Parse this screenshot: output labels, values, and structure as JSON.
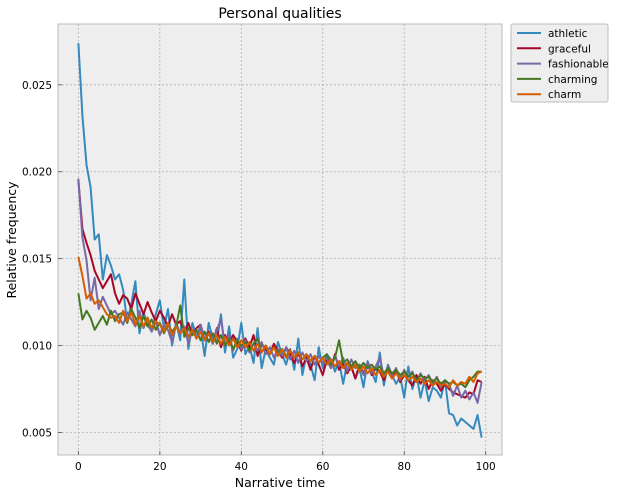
{
  "chart_data": {
    "type": "line",
    "title": "Personal qualities",
    "xlabel": "Narrative time",
    "ylabel": "Relative frequency",
    "xlim": [
      -5,
      104
    ],
    "ylim": [
      0.0037,
      0.0285
    ],
    "xticks": [
      0,
      20,
      40,
      60,
      80,
      100
    ],
    "xtick_labels": [
      "0",
      "20",
      "40",
      "60",
      "80",
      "100"
    ],
    "yticks": [
      0.005,
      0.01,
      0.015,
      0.02,
      0.025
    ],
    "ytick_labels": [
      "0.005",
      "0.010",
      "0.015",
      "0.020",
      "0.025"
    ],
    "grid": true,
    "legend_position": "outside-top-right",
    "x": [
      0,
      1,
      2,
      3,
      4,
      5,
      6,
      7,
      8,
      9,
      10,
      11,
      12,
      13,
      14,
      15,
      16,
      17,
      18,
      19,
      20,
      21,
      22,
      23,
      24,
      25,
      26,
      27,
      28,
      29,
      30,
      31,
      32,
      33,
      34,
      35,
      36,
      37,
      38,
      39,
      40,
      41,
      42,
      43,
      44,
      45,
      46,
      47,
      48,
      49,
      50,
      51,
      52,
      53,
      54,
      55,
      56,
      57,
      58,
      59,
      60,
      61,
      62,
      63,
      64,
      65,
      66,
      67,
      68,
      69,
      70,
      71,
      72,
      73,
      74,
      75,
      76,
      77,
      78,
      79,
      80,
      81,
      82,
      83,
      84,
      85,
      86,
      87,
      88,
      89,
      90,
      91,
      92,
      93,
      94,
      95,
      96,
      97,
      98,
      99
    ],
    "series": [
      {
        "name": "athletic",
        "color": "#348abd",
        "values": [
          0.0274,
          0.0232,
          0.0204,
          0.0191,
          0.0161,
          0.0164,
          0.0138,
          0.0152,
          0.0146,
          0.0138,
          0.0141,
          0.0132,
          0.0113,
          0.0124,
          0.0137,
          0.0107,
          0.0119,
          0.0112,
          0.0108,
          0.0118,
          0.0126,
          0.011,
          0.0121,
          0.01,
          0.0113,
          0.0103,
          0.0138,
          0.0098,
          0.0113,
          0.0105,
          0.011,
          0.0094,
          0.0113,
          0.0104,
          0.0102,
          0.0118,
          0.0096,
          0.0111,
          0.0093,
          0.0098,
          0.0113,
          0.0095,
          0.01,
          0.009,
          0.011,
          0.0087,
          0.0098,
          0.0093,
          0.0089,
          0.0102,
          0.0095,
          0.0089,
          0.0098,
          0.0086,
          0.0104,
          0.0083,
          0.0095,
          0.0089,
          0.008,
          0.0099,
          0.0087,
          0.0095,
          0.0092,
          0.0085,
          0.0091,
          0.0078,
          0.009,
          0.0088,
          0.0081,
          0.0087,
          0.0076,
          0.0091,
          0.0085,
          0.0079,
          0.0096,
          0.0077,
          0.0089,
          0.0083,
          0.0078,
          0.0082,
          0.007,
          0.0088,
          0.0075,
          0.0083,
          0.007,
          0.008,
          0.0068,
          0.0076,
          0.0074,
          0.007,
          0.008,
          0.0061,
          0.006,
          0.0054,
          0.0058,
          0.0056,
          0.0054,
          0.0052,
          0.006,
          0.0047
        ]
      },
      {
        "name": "graceful",
        "color": "#a60628",
        "values": [
          0.0195,
          0.0167,
          0.0159,
          0.0152,
          0.0143,
          0.0138,
          0.0133,
          0.0137,
          0.0141,
          0.013,
          0.0124,
          0.0129,
          0.0127,
          0.0121,
          0.013,
          0.0124,
          0.0118,
          0.0125,
          0.0119,
          0.0114,
          0.012,
          0.0116,
          0.0111,
          0.0118,
          0.0112,
          0.0114,
          0.0107,
          0.0113,
          0.0106,
          0.011,
          0.0112,
          0.0103,
          0.0108,
          0.0101,
          0.011,
          0.0099,
          0.0106,
          0.0101,
          0.0106,
          0.0102,
          0.0097,
          0.0104,
          0.0099,
          0.0106,
          0.0094,
          0.0101,
          0.0098,
          0.0095,
          0.0101,
          0.0097,
          0.0093,
          0.0099,
          0.0095,
          0.009,
          0.0096,
          0.0088,
          0.0093,
          0.0086,
          0.0094,
          0.0089,
          0.0083,
          0.0092,
          0.0087,
          0.0095,
          0.0086,
          0.009,
          0.0084,
          0.0088,
          0.0081,
          0.0089,
          0.0084,
          0.009,
          0.0083,
          0.0087,
          0.0085,
          0.008,
          0.0087,
          0.0082,
          0.0086,
          0.0079,
          0.0083,
          0.008,
          0.0077,
          0.0083,
          0.0078,
          0.0082,
          0.0075,
          0.008,
          0.0078,
          0.0074,
          0.0078,
          0.0075,
          0.0073,
          0.0072,
          0.0071,
          0.007,
          0.0073,
          0.0072,
          0.008,
          0.0079
        ]
      },
      {
        "name": "fashionable",
        "color": "#7a68a6",
        "values": [
          0.0196,
          0.0162,
          0.0149,
          0.0126,
          0.0139,
          0.0121,
          0.0128,
          0.0123,
          0.0118,
          0.012,
          0.0116,
          0.0112,
          0.0119,
          0.0115,
          0.0111,
          0.012,
          0.011,
          0.0116,
          0.0108,
          0.0114,
          0.0106,
          0.0112,
          0.0109,
          0.0102,
          0.0113,
          0.0107,
          0.0111,
          0.0101,
          0.0109,
          0.0104,
          0.0112,
          0.0103,
          0.0107,
          0.0101,
          0.0109,
          0.0115,
          0.01,
          0.0106,
          0.0097,
          0.0104,
          0.0098,
          0.0103,
          0.0096,
          0.0101,
          0.0097,
          0.0102,
          0.0095,
          0.0099,
          0.0093,
          0.0098,
          0.0094,
          0.0099,
          0.0092,
          0.0097,
          0.009,
          0.0096,
          0.0091,
          0.0095,
          0.0089,
          0.0094,
          0.009,
          0.0093,
          0.0087,
          0.0094,
          0.0088,
          0.0093,
          0.0085,
          0.0092,
          0.0087,
          0.0089,
          0.0083,
          0.009,
          0.0084,
          0.0088,
          0.0093,
          0.0082,
          0.0088,
          0.0083,
          0.0087,
          0.008,
          0.0086,
          0.0082,
          0.0085,
          0.0079,
          0.0084,
          0.008,
          0.0083,
          0.0078,
          0.0082,
          0.0076,
          0.008,
          0.0078,
          0.0071,
          0.0077,
          0.007,
          0.0074,
          0.0069,
          0.0073,
          0.0067,
          0.0079
        ]
      },
      {
        "name": "charming",
        "color": "#467821",
        "values": [
          0.013,
          0.0115,
          0.012,
          0.0116,
          0.0109,
          0.0113,
          0.0117,
          0.0112,
          0.012,
          0.0114,
          0.0118,
          0.0119,
          0.0113,
          0.0121,
          0.0116,
          0.011,
          0.0117,
          0.0111,
          0.0115,
          0.0109,
          0.0113,
          0.0107,
          0.0112,
          0.0108,
          0.0111,
          0.0123,
          0.0105,
          0.011,
          0.0106,
          0.0109,
          0.0103,
          0.0108,
          0.0102,
          0.0107,
          0.0101,
          0.0106,
          0.01,
          0.0104,
          0.0098,
          0.0103,
          0.01,
          0.0102,
          0.0097,
          0.0101,
          0.0104,
          0.0096,
          0.01,
          0.0095,
          0.0099,
          0.0096,
          0.0098,
          0.0094,
          0.0097,
          0.0093,
          0.0096,
          0.0092,
          0.0095,
          0.0091,
          0.0094,
          0.009,
          0.0093,
          0.0095,
          0.0089,
          0.0093,
          0.0103,
          0.009,
          0.0092,
          0.0088,
          0.0091,
          0.0087,
          0.009,
          0.0087,
          0.0089,
          0.0086,
          0.0088,
          0.0084,
          0.0087,
          0.0084,
          0.0086,
          0.0083,
          0.0085,
          0.0082,
          0.0084,
          0.008,
          0.0083,
          0.0081,
          0.0082,
          0.0079,
          0.0081,
          0.0078,
          0.008,
          0.0078,
          0.0079,
          0.0077,
          0.0078,
          0.0076,
          0.008,
          0.0082,
          0.0085,
          0.0085
        ]
      },
      {
        "name": "charm",
        "color": "#d55e00",
        "values": [
          0.0151,
          0.014,
          0.0127,
          0.013,
          0.0124,
          0.0126,
          0.0122,
          0.0118,
          0.0116,
          0.0117,
          0.0113,
          0.012,
          0.0114,
          0.0119,
          0.0112,
          0.0117,
          0.0111,
          0.0116,
          0.011,
          0.0114,
          0.0112,
          0.0108,
          0.0113,
          0.0106,
          0.0111,
          0.0107,
          0.011,
          0.0105,
          0.0109,
          0.0104,
          0.0108,
          0.0103,
          0.0107,
          0.0102,
          0.0106,
          0.0101,
          0.0105,
          0.01,
          0.0104,
          0.0099,
          0.0103,
          0.0099,
          0.0102,
          0.0097,
          0.0101,
          0.0096,
          0.01,
          0.0095,
          0.0099,
          0.0094,
          0.0098,
          0.0093,
          0.0097,
          0.0093,
          0.0096,
          0.0092,
          0.0095,
          0.0091,
          0.0094,
          0.009,
          0.0093,
          0.0089,
          0.0092,
          0.0088,
          0.0091,
          0.0087,
          0.009,
          0.0086,
          0.0089,
          0.0085,
          0.0088,
          0.0084,
          0.0087,
          0.0083,
          0.0086,
          0.0082,
          0.0085,
          0.0081,
          0.0084,
          0.0081,
          0.0083,
          0.008,
          0.0082,
          0.0079,
          0.0081,
          0.0078,
          0.008,
          0.0077,
          0.0079,
          0.0077,
          0.0078,
          0.0076,
          0.008,
          0.0077,
          0.0079,
          0.0078,
          0.0082,
          0.0079,
          0.0084,
          0.0085
        ]
      }
    ]
  }
}
